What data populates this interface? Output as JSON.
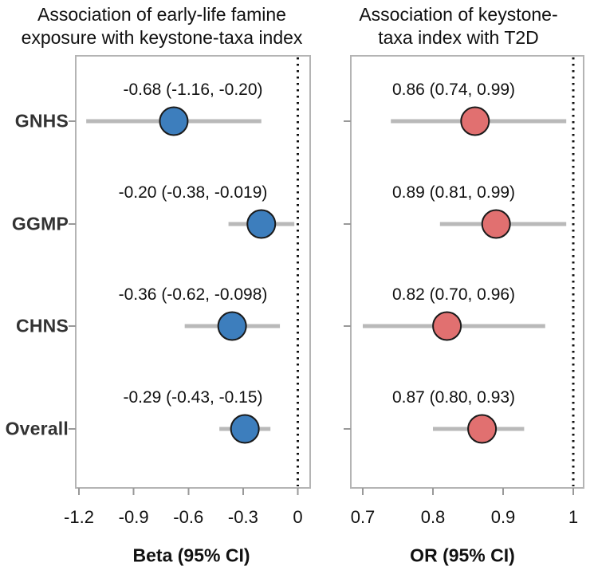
{
  "chart_data": [
    {
      "type": "forest",
      "panel": "left",
      "title": "Association of early-life famine\nexposure with keystone-taxa index",
      "xlabel": "Beta (95% CI)",
      "x_tick_labels": [
        "-1.2",
        "-0.9",
        "-0.6",
        "-0.3",
        "0"
      ],
      "x_tick_values": [
        -1.2,
        -0.9,
        -0.6,
        -0.3,
        0
      ],
      "xlim": [
        -1.29,
        0.07
      ],
      "refline": 0,
      "refline_style": "dotted",
      "marker_fill": "#3d7ebd",
      "marker_stroke": "#1a1a1a",
      "rows": [
        {
          "category": "GNHS",
          "estimate": -0.68,
          "ci_low": -1.16,
          "ci_high": -0.2,
          "label": "-0.68 (-1.16, -0.20)"
        },
        {
          "category": "GGMP",
          "estimate": -0.2,
          "ci_low": -0.38,
          "ci_high": -0.019,
          "label": "-0.20 (-0.38, -0.019)"
        },
        {
          "category": "CHNS",
          "estimate": -0.36,
          "ci_low": -0.62,
          "ci_high": -0.098,
          "label": "-0.36 (-0.62, -0.098)"
        },
        {
          "category": "Overall",
          "estimate": -0.29,
          "ci_low": -0.43,
          "ci_high": -0.15,
          "label": "-0.29 (-0.43, -0.15)"
        }
      ]
    },
    {
      "type": "forest",
      "panel": "right",
      "title": "Association of keystone-\ntaxa index with T2D",
      "xlabel": "OR (95% CI)",
      "x_tick_labels": [
        "0.7",
        "0.8",
        "0.9",
        "1"
      ],
      "x_tick_values": [
        0.7,
        0.8,
        0.9,
        1
      ],
      "xlim": [
        0.683,
        1.015
      ],
      "refline": 1,
      "refline_style": "dotted",
      "marker_fill": "#e17070",
      "marker_stroke": "#1a1a1a",
      "rows": [
        {
          "category": "GNHS",
          "estimate": 0.86,
          "ci_low": 0.74,
          "ci_high": 0.99,
          "label": "0.86 (0.74, 0.99)"
        },
        {
          "category": "GGMP",
          "estimate": 0.89,
          "ci_low": 0.81,
          "ci_high": 0.99,
          "label": "0.89 (0.81, 0.99)"
        },
        {
          "category": "CHNS",
          "estimate": 0.82,
          "ci_low": 0.7,
          "ci_high": 0.96,
          "label": "0.82 (0.70, 0.96)"
        },
        {
          "category": "Overall",
          "estimate": 0.87,
          "ci_low": 0.8,
          "ci_high": 0.93,
          "label": "0.87 (0.80, 0.93)"
        }
      ]
    }
  ],
  "colors": {
    "ci_line": "#b9b9b9",
    "panel_border": "#b4b4b4",
    "refline": "#111111",
    "tick": "#999999",
    "text": "#111111",
    "row_label": "#333333"
  }
}
